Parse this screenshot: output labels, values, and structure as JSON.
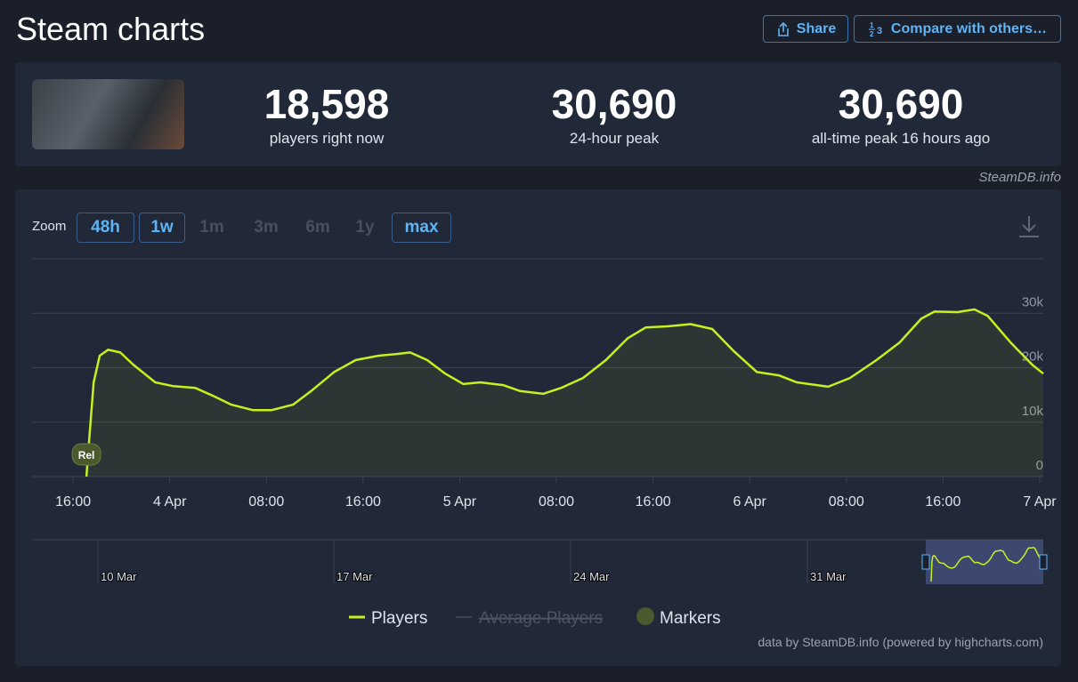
{
  "header": {
    "title": "Steam charts",
    "buttons": [
      "Share",
      "Compare with others…"
    ]
  },
  "stats": [
    {
      "value": "18,598",
      "label": "players right now"
    },
    {
      "value": "30,690",
      "label": "24-hour peak"
    },
    {
      "value": "30,690",
      "label": "all-time peak 16 hours ago"
    }
  ],
  "watermark": "SteamDB.info",
  "zoom": {
    "label": "Zoom",
    "options": [
      "48h",
      "1w",
      "1m",
      "3m",
      "6m",
      "1y",
      "max"
    ],
    "active": [
      "48h",
      "1w",
      "max"
    ]
  },
  "chart": {
    "type": "line",
    "x": [
      -6.9,
      -6.7,
      -6.3,
      -5.8,
      -5.1,
      -4.1,
      -3.0,
      -1.2,
      0.3,
      2.1,
      3.6,
      5.1,
      6.9,
      8.4,
      10.2,
      11.7,
      13.6,
      15.4,
      17.3,
      18.7,
      19.9,
      21.3,
      22.8,
      24.3,
      25.7,
      27.6,
      29.0,
      30.9,
      32.4,
      34.2,
      36.1,
      37.9,
      39.4,
      41.2,
      43.1,
      44.9,
      46.7,
      48.6,
      50.4,
      51.9,
      54.5,
      56.3,
      58.5,
      60.4,
      62.2,
      63.3,
      65.2,
      66.6,
      67.7,
      69.6,
      71.4,
      72.3
    ],
    "series": [
      {
        "name": "Players",
        "color": "#c6f01f",
        "values": [
          0,
          5900,
          17300,
          22200,
          23300,
          22800,
          20500,
          17300,
          16600,
          16300,
          14800,
          13200,
          12200,
          12200,
          13200,
          15700,
          19200,
          21400,
          22200,
          22500,
          22800,
          21400,
          18900,
          17000,
          17300,
          16800,
          15700,
          15200,
          16300,
          18100,
          21400,
          25400,
          27400,
          27600,
          28000,
          27100,
          23000,
          19200,
          18600,
          17300,
          16500,
          18100,
          21400,
          24600,
          29000,
          30300,
          30200,
          30690,
          29500,
          24600,
          20500,
          18900
        ]
      }
    ],
    "xlim": [
      -11.4,
      72.3
    ],
    "ylim": [
      0,
      40000
    ],
    "yticks": [
      0,
      {
        "value": 10000,
        "label": "10k"
      },
      {
        "value": 20000,
        "label": "20k"
      },
      {
        "value": 30000,
        "label": "30k"
      }
    ],
    "xticks": [
      {
        "value": -8,
        "label": "16:00"
      },
      {
        "value": 0,
        "label": "4 Apr"
      },
      {
        "value": 8,
        "label": "08:00"
      },
      {
        "value": 16,
        "label": "16:00"
      },
      {
        "value": 24,
        "label": "5 Apr"
      },
      {
        "value": 32,
        "label": "08:00"
      },
      {
        "value": 40,
        "label": "16:00"
      },
      {
        "value": 48,
        "label": "6 Apr"
      },
      {
        "value": 56,
        "label": "08:00"
      },
      {
        "value": 64,
        "label": "16:00"
      },
      {
        "value": 72,
        "label": "7 Apr"
      }
    ],
    "grid": true,
    "marker": "Rel",
    "hidden_series": "Average Players",
    "markers_label": "Markers",
    "navigator_labels": [
      "10 Mar",
      "17 Mar",
      "24 Mar",
      "31 Mar"
    ],
    "credit": "data by SteamDB.info (powered by highcharts.com)"
  }
}
